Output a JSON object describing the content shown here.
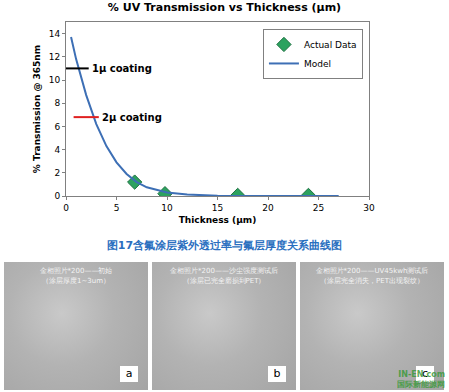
{
  "chart_data": {
    "type": "scatter",
    "title": "% UV Transmission vs Thickness (µm)",
    "x_label": "Thickness (µm)",
    "y_label": "% Transmission @ 365nm",
    "xlim": [
      0,
      30
    ],
    "xticks": [
      0,
      5,
      10,
      15,
      20,
      25,
      30
    ],
    "ylim": [
      0,
      15
    ],
    "yticks": [
      0,
      2,
      4,
      6,
      8,
      10,
      12,
      14
    ],
    "grid": false,
    "legend": "upper right",
    "series": [
      {
        "name": "Actual Data",
        "type": "scatter",
        "marker": "diamond",
        "color": "#2ca25f",
        "x": [
          6.8,
          9.8,
          17,
          24
        ],
        "values": [
          1.2,
          0.2,
          0.05,
          0.05
        ]
      },
      {
        "name": "Model",
        "type": "line",
        "color": "#3d6fb5",
        "x": [
          0.5,
          1,
          2,
          3,
          4,
          5,
          6,
          7,
          8,
          10,
          12,
          15,
          20,
          27
        ],
        "values": [
          13.7,
          11.8,
          8.7,
          6.2,
          4.3,
          2.9,
          1.9,
          1.2,
          0.75,
          0.3,
          0.12,
          0.03,
          0.01,
          0
        ]
      }
    ],
    "annotations": [
      {
        "text": "1µ coating",
        "x": 1,
        "y": 11,
        "color": "#000000"
      },
      {
        "text": "2µ coating",
        "x": 2,
        "y": 6.8,
        "color": "#e02020"
      }
    ]
  },
  "caption": "图17含氟涂层紫外透过率与氟层厚度关系曲线图",
  "photos": [
    {
      "label": "a",
      "lines": [
        "金相照片*200——初始",
        "（涂层厚度1~3um）"
      ]
    },
    {
      "label": "b",
      "lines": [
        "金相照片*200——沙尘强度测试后",
        "（涂层已完全磨损到PET）"
      ]
    },
    {
      "label": "c",
      "lines": [
        "金相照片*200——UV45kwh测试后",
        "（涂层完全消失，PET出现裂纹）"
      ]
    }
  ],
  "watermark": [
    "IN-EN.com",
    "国际新能源网"
  ]
}
